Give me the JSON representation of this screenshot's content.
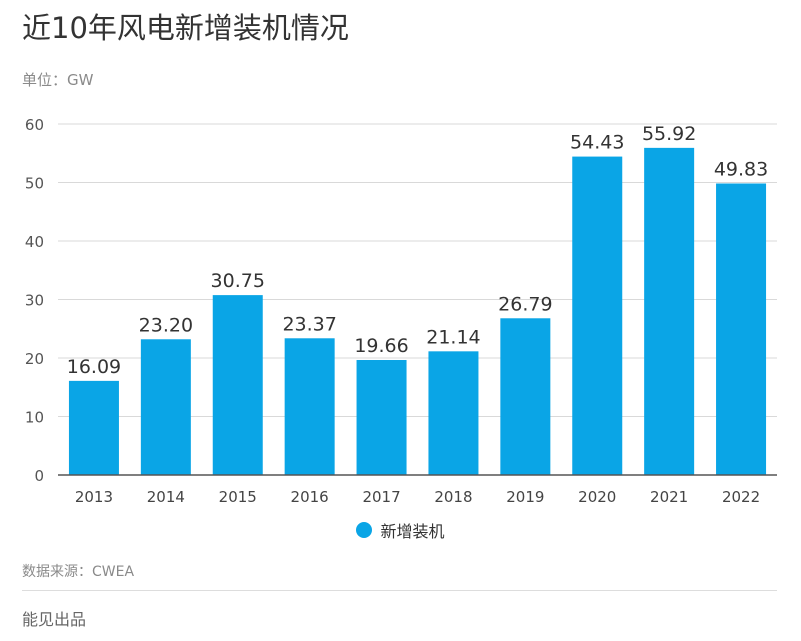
{
  "header": {
    "title": "近10年风电新增装机情况",
    "unit_label": "单位：GW"
  },
  "chart_data": {
    "type": "bar",
    "categories": [
      "2013",
      "2014",
      "2015",
      "2016",
      "2017",
      "2018",
      "2019",
      "2020",
      "2021",
      "2022"
    ],
    "series": [
      {
        "name": "新增装机",
        "values": [
          16.09,
          23.2,
          30.75,
          23.37,
          19.66,
          21.14,
          26.79,
          54.43,
          55.92,
          49.83
        ],
        "value_labels": [
          "16.09",
          "23.20",
          "30.75",
          "23.37",
          "19.66",
          "21.14",
          "26.79",
          "54.43",
          "55.92",
          "49.83"
        ],
        "color": "#0aa5e6"
      }
    ],
    "ylim": [
      0,
      60
    ],
    "yticks": [
      0,
      10,
      20,
      30,
      40,
      50,
      60
    ],
    "grid": true,
    "legend_position": "bottom-center"
  },
  "source": {
    "text": "数据来源：CWEA"
  },
  "footer": {
    "text": "能见出品"
  }
}
